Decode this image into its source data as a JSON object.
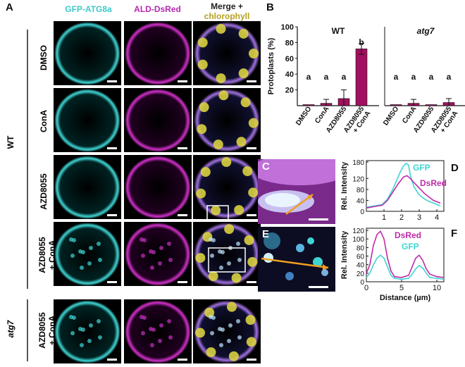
{
  "panel_letters": {
    "a": "A",
    "b": "B",
    "c": "C",
    "d": "D",
    "e": "E",
    "f": "F"
  },
  "column_headers": {
    "gfp": "GFP-ATG8a",
    "ald": "ALD-DsRed",
    "merge_line1": "Merge +",
    "merge_line2": "chlorophyll"
  },
  "row_labels": {
    "dmso": "DMSO",
    "cona": "ConA",
    "azd": "AZD8055",
    "azd_cona_1": "AZD8055",
    "azd_cona_2": "+ ConA"
  },
  "group_labels": {
    "wt": "WT",
    "atg7": "atg7"
  },
  "colors": {
    "gfp": "#3fd4d4",
    "dsred": "#c02aa8",
    "chlorophyll": "#b5a21e",
    "bar": "#a0105e",
    "arrow": "#f0a020"
  },
  "chart_data": [
    {
      "type": "bar",
      "panel": "B",
      "ylabel": "Protoplasts (%)",
      "ylim": [
        0,
        100
      ],
      "yticks": [
        20,
        40,
        60,
        80,
        100
      ],
      "categories": [
        "DMSO",
        "ConA",
        "AZD8055",
        "AZD8055 + ConA"
      ],
      "groups": [
        {
          "name": "WT",
          "values": [
            0,
            3,
            9,
            72
          ],
          "errors": [
            0,
            5,
            11,
            7
          ],
          "letters": [
            "a",
            "a",
            "a",
            "b"
          ]
        },
        {
          "name": "atg7",
          "values": [
            0,
            3,
            0,
            4
          ],
          "errors": [
            0,
            5,
            0,
            5
          ],
          "letters": [
            "a",
            "a",
            "a",
            "a"
          ]
        }
      ]
    },
    {
      "type": "line",
      "panel": "D",
      "ylabel": "Rel. Intensity",
      "xlim": [
        0,
        4.4
      ],
      "ylim": [
        0,
        185
      ],
      "xticks": [
        1,
        2,
        3,
        4
      ],
      "yticks": [
        0,
        40,
        80,
        120,
        180
      ],
      "series": [
        {
          "name": "GFP",
          "x": [
            0,
            0.5,
            0.9,
            1.2,
            1.5,
            1.7,
            1.9,
            2.1,
            2.25,
            2.4,
            2.5,
            2.7,
            3.0,
            3.3,
            3.6,
            3.8,
            4.0,
            4.2
          ],
          "y": [
            15,
            20,
            25,
            45,
            80,
            110,
            140,
            165,
            175,
            168,
            130,
            90,
            60,
            45,
            35,
            30,
            25,
            20
          ]
        },
        {
          "name": "DsRed",
          "x": [
            0,
            0.5,
            0.9,
            1.2,
            1.5,
            1.8,
            2.1,
            2.3,
            2.5,
            2.7,
            3.0,
            3.3,
            3.6,
            3.8,
            4.0,
            4.2
          ],
          "y": [
            12,
            18,
            22,
            40,
            70,
            100,
            125,
            130,
            120,
            105,
            85,
            65,
            50,
            40,
            35,
            30
          ]
        }
      ]
    },
    {
      "type": "line",
      "panel": "F",
      "ylabel": "Rel. Intensity",
      "xlabel": "Distance (µm)",
      "xlim": [
        0,
        11
      ],
      "ylim": [
        0,
        125
      ],
      "xticks": [
        0,
        5,
        10
      ],
      "yticks": [
        0,
        20,
        40,
        60,
        80,
        100,
        120
      ],
      "series": [
        {
          "name": "DsRed",
          "x": [
            0,
            0.5,
            1.0,
            1.5,
            2.0,
            2.5,
            3.0,
            3.5,
            4.0,
            5.0,
            6.0,
            6.5,
            7.0,
            7.5,
            8.0,
            8.5,
            9.0,
            10.0,
            11.0
          ],
          "y": [
            20,
            40,
            85,
            110,
            118,
            100,
            55,
            25,
            12,
            10,
            15,
            35,
            55,
            62,
            50,
            30,
            18,
            12,
            10
          ]
        },
        {
          "name": "GFP",
          "x": [
            0,
            0.5,
            1.0,
            1.5,
            2.0,
            2.5,
            3.0,
            3.5,
            4.0,
            5.0,
            6.0,
            6.5,
            7.0,
            7.5,
            8.0,
            8.5,
            9.0,
            10.0,
            11.0
          ],
          "y": [
            10,
            20,
            40,
            55,
            62,
            55,
            35,
            15,
            8,
            6,
            8,
            18,
            30,
            38,
            32,
            20,
            10,
            8,
            6
          ]
        }
      ]
    }
  ]
}
